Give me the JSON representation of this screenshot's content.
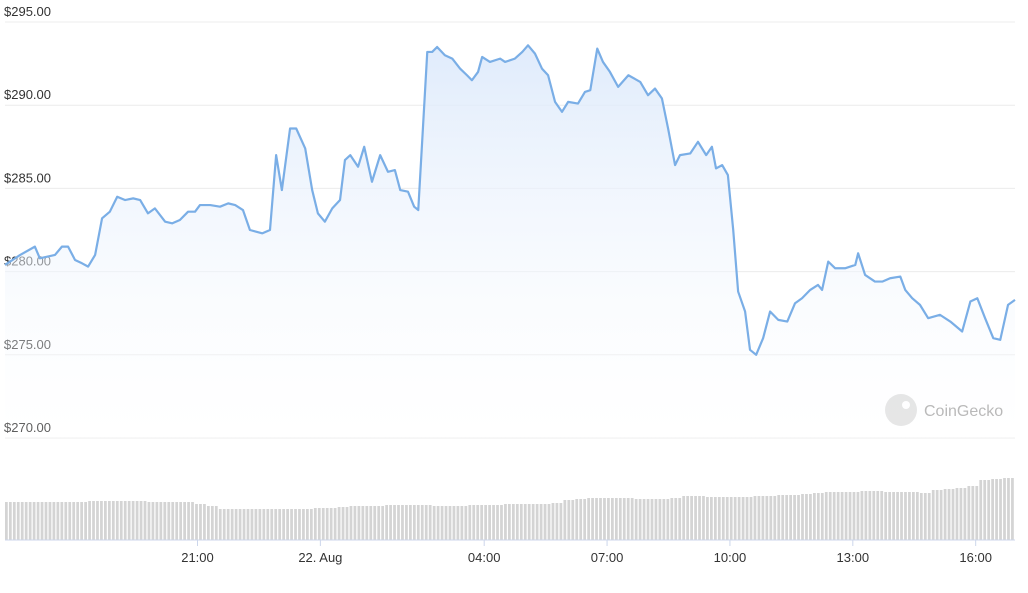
{
  "chart_data": {
    "type": "area",
    "x": [
      16.3,
      16.67,
      17.03,
      17.15,
      17.52,
      17.69,
      17.84,
      18.01,
      18.18,
      18.33,
      18.5,
      18.67,
      18.86,
      19.04,
      19.23,
      19.43,
      19.6,
      19.79,
      19.96,
      20.21,
      20.38,
      20.57,
      20.77,
      20.94,
      21.06,
      21.31,
      21.55,
      21.75,
      21.92,
      22.11,
      22.28,
      22.58,
      22.77,
      22.92,
      23.06,
      23.26,
      23.41,
      23.63,
      23.8,
      23.94,
      24.11,
      24.29,
      24.48,
      24.6,
      24.73,
      24.92,
      25.07,
      25.26,
      25.46,
      25.65,
      25.82,
      25.95,
      26.14,
      26.29,
      26.39,
      26.61,
      26.73,
      26.85,
      27.04,
      27.22,
      27.41,
      27.58,
      27.7,
      27.85,
      27.95,
      28.14,
      28.39,
      28.51,
      28.75,
      28.93,
      29.07,
      29.24,
      29.41,
      29.56,
      29.73,
      29.9,
      30.05,
      30.29,
      30.46,
      30.59,
      30.76,
      30.9,
      31.07,
      31.27,
      31.52,
      31.81,
      32.0,
      32.17,
      32.34,
      32.49,
      32.66,
      32.78,
      33.03,
      33.22,
      33.42,
      33.56,
      33.66,
      33.81,
      33.95,
      34.08,
      34.2,
      34.37,
      34.49,
      34.64,
      34.81,
      34.98,
      35.18,
      35.4,
      35.59,
      35.76,
      35.96,
      36.15,
      36.25,
      36.4,
      36.57,
      36.81,
      37.06,
      37.13,
      37.3,
      37.54,
      37.72,
      37.91,
      38.16,
      38.28,
      38.45,
      38.64,
      38.84,
      39.13,
      39.38,
      39.67,
      39.87,
      40.04,
      40.23,
      40.43,
      40.6,
      40.79,
      40.96
    ],
    "series": [
      {
        "color": "#7aaee6",
        "values": [
          280.4,
          281.0,
          281.5,
          280.8,
          281.0,
          281.5,
          281.5,
          280.7,
          280.5,
          280.3,
          281.0,
          283.2,
          283.6,
          284.5,
          284.3,
          284.4,
          284.3,
          283.5,
          283.8,
          283.0,
          282.9,
          283.1,
          283.6,
          283.6,
          284.0,
          284.0,
          283.9,
          284.1,
          284.0,
          283.7,
          282.5,
          282.3,
          282.5,
          287.0,
          284.9,
          288.6,
          288.6,
          287.4,
          284.9,
          283.5,
          283.0,
          283.8,
          284.3,
          286.7,
          287.0,
          286.3,
          287.5,
          285.4,
          287.0,
          286.0,
          286.1,
          284.9,
          284.8,
          283.9,
          283.7,
          293.2,
          293.2,
          293.5,
          293.0,
          292.8,
          292.2,
          291.8,
          291.5,
          292.0,
          292.9,
          292.6,
          292.8,
          292.6,
          292.8,
          293.2,
          293.6,
          293.1,
          292.2,
          291.8,
          290.2,
          289.6,
          290.2,
          290.1,
          290.8,
          290.9,
          293.4,
          292.6,
          292.0,
          291.1,
          291.8,
          291.4,
          290.6,
          291.0,
          290.4,
          288.6,
          286.4,
          287.0,
          287.1,
          287.8,
          287.0,
          287.5,
          286.2,
          286.4,
          285.8,
          282.5,
          278.8,
          277.6,
          275.3,
          275.0,
          276.0,
          277.6,
          277.1,
          277.0,
          278.1,
          278.4,
          278.9,
          279.2,
          278.9,
          280.6,
          280.2,
          280.2,
          280.4,
          281.1,
          279.8,
          279.4,
          279.4,
          279.6,
          279.7,
          278.9,
          278.4,
          278.0,
          277.2,
          277.4,
          277.0,
          276.4,
          278.2,
          278.4,
          277.2,
          276.0,
          275.9,
          278.0,
          278.3
        ]
      }
    ],
    "xlim": [
      16.3,
      40.96
    ],
    "xticks": [
      {
        "value": 21,
        "label": "21:00"
      },
      {
        "value": 24,
        "label": "22. Aug"
      },
      {
        "value": 28,
        "label": "04:00"
      },
      {
        "value": 31,
        "label": "07:00"
      },
      {
        "value": 34,
        "label": "10:00"
      },
      {
        "value": 37,
        "label": "13:00"
      },
      {
        "value": 40,
        "label": "16:00"
      }
    ],
    "ylim": [
      270,
      295
    ],
    "yticks": [
      {
        "value": 270,
        "label": "$270.00"
      },
      {
        "value": 275,
        "label": "$275.00"
      },
      {
        "value": 280,
        "label": "$280.00"
      },
      {
        "value": 285,
        "label": "$285.00"
      },
      {
        "value": 290,
        "label": "$290.00"
      },
      {
        "value": 295,
        "label": "$295.00"
      }
    ],
    "grid": true,
    "volume": {
      "color": "#d4d4d4",
      "ylim": [
        0,
        100
      ],
      "values": [
        38,
        38,
        38,
        38,
        38,
        38,
        38,
        39,
        39,
        39,
        39,
        39,
        38,
        38,
        38,
        38,
        36,
        34,
        31,
        31,
        31,
        31,
        31,
        31,
        31,
        31,
        32,
        32,
        33,
        34,
        34,
        34,
        35,
        35,
        35,
        35,
        34,
        34,
        34,
        35,
        35,
        35,
        36,
        36,
        36,
        36,
        37,
        40,
        41,
        42,
        42,
        42,
        42,
        41,
        41,
        41,
        42,
        44,
        44,
        43,
        43,
        43,
        43,
        44,
        44,
        45,
        45,
        46,
        47,
        48,
        48,
        48,
        49,
        49,
        48,
        48,
        48,
        47,
        50,
        51,
        52,
        54,
        60,
        61,
        62
      ]
    },
    "watermark": "CoinGecko"
  }
}
